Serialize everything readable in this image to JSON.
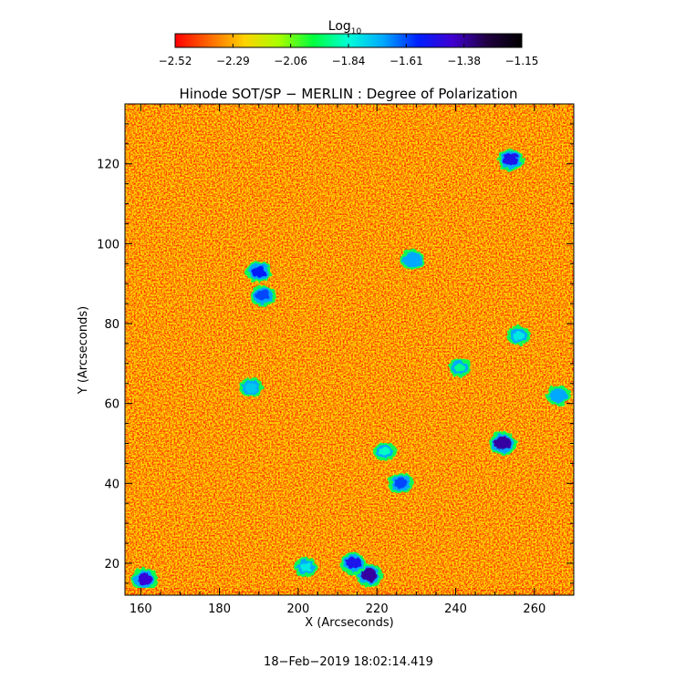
{
  "chart_data": {
    "type": "heatmap",
    "title": "Hinode SOT/SP − MERLIN : Degree of Polarization",
    "xlabel": "X (Arcseconds)",
    "ylabel": "Y (Arcseconds)",
    "xlim": [
      156,
      270
    ],
    "ylim": [
      12,
      135
    ],
    "x_ticks": [
      160,
      180,
      200,
      220,
      240,
      260
    ],
    "x_tick_labels": [
      "160",
      "180",
      "200",
      "220",
      "240",
      "260"
    ],
    "y_ticks": [
      20,
      40,
      60,
      80,
      100,
      120
    ],
    "y_tick_labels": [
      "20",
      "40",
      "60",
      "80",
      "100",
      "120"
    ],
    "colorbar": {
      "label_base": "Log",
      "label_sub": "10",
      "min": -2.52,
      "max": -1.15,
      "colormap": "rainbow (red low → violet/black high)",
      "tick_labels": [
        "−2.52",
        "−2.29",
        "−2.06",
        "−1.84",
        "−1.61",
        "−1.38",
        "−1.15"
      ],
      "colors": [
        "#ff0000",
        "#ff6a00",
        "#ffd200",
        "#a8ff00",
        "#00ff40",
        "#00ffd8",
        "#00a8ff",
        "#0020ff",
        "#4000d0",
        "#200040",
        "#000000"
      ]
    },
    "background_level": -2.4,
    "features": [
      {
        "x": 252,
        "y": 50,
        "value": -1.38
      },
      {
        "x": 254,
        "y": 121,
        "value": -1.5
      },
      {
        "x": 190,
        "y": 93,
        "value": -1.55
      },
      {
        "x": 191,
        "y": 87,
        "value": -1.6
      },
      {
        "x": 218,
        "y": 17,
        "value": -1.38
      },
      {
        "x": 214,
        "y": 20,
        "value": -1.5
      },
      {
        "x": 161,
        "y": 16,
        "value": -1.45
      },
      {
        "x": 226,
        "y": 40,
        "value": -1.6
      },
      {
        "x": 229,
        "y": 96,
        "value": -1.7
      },
      {
        "x": 188,
        "y": 64,
        "value": -1.75
      },
      {
        "x": 266,
        "y": 62,
        "value": -1.7
      },
      {
        "x": 256,
        "y": 77,
        "value": -1.8
      },
      {
        "x": 202,
        "y": 19,
        "value": -1.8
      },
      {
        "x": 222,
        "y": 48,
        "value": -1.85
      },
      {
        "x": 241,
        "y": 69,
        "value": -1.9
      }
    ]
  },
  "footer": {
    "timestamp": "18−Feb−2019 18:02:14.419"
  }
}
